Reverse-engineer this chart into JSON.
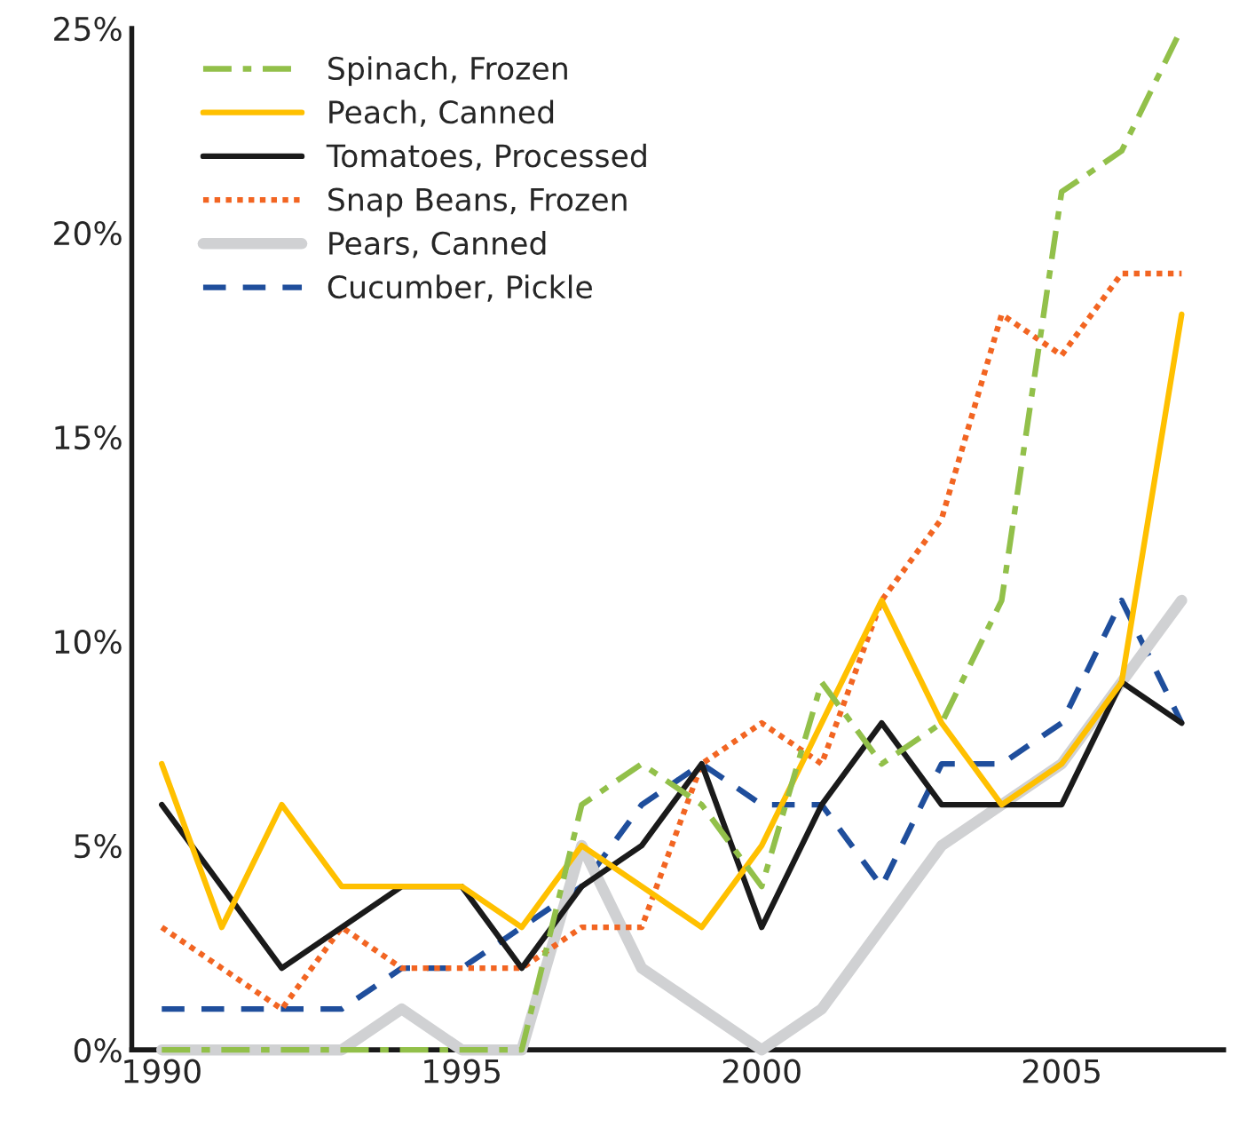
{
  "chart_data": {
    "type": "line",
    "categories": [
      "1990",
      null,
      null,
      null,
      null,
      "1995",
      null,
      null,
      null,
      null,
      "2000",
      null,
      null,
      null,
      null,
      "2005",
      null,
      null
    ],
    "series": [
      {
        "name": "Spinach, Frozen",
        "color": "#92c04a",
        "line_style": "dashdot",
        "values": [
          0,
          0,
          0,
          0,
          0,
          0,
          0,
          6,
          7,
          6,
          4,
          9,
          7,
          8,
          11,
          21,
          22,
          25
        ]
      },
      {
        "name": "Peach, Canned",
        "color": "#ffc000",
        "line_style": "solid",
        "values": [
          7,
          3,
          6,
          4,
          4,
          4,
          3,
          5,
          4,
          3,
          5,
          8,
          11,
          8,
          6,
          7,
          9,
          18
        ]
      },
      {
        "name": "Tomatoes, Processed",
        "color": "#1a1a1a",
        "line_style": "solid",
        "values": [
          6,
          4,
          2,
          3,
          4,
          4,
          2,
          4,
          5,
          7,
          3,
          6,
          8,
          6,
          6,
          6,
          9,
          8
        ]
      },
      {
        "name": "Snap Beans, Frozen",
        "color": "#f26522",
        "line_style": "dotted",
        "values": [
          3,
          2,
          1,
          3,
          2,
          2,
          2,
          3,
          3,
          7,
          8,
          7,
          11,
          13,
          18,
          17,
          19,
          19
        ]
      },
      {
        "name": "Pears, Canned",
        "color": "#d0d1d3",
        "line_style": "solid",
        "values": [
          0,
          0,
          0,
          0,
          1,
          0,
          0,
          5,
          2,
          1,
          0,
          1,
          3,
          5,
          6,
          7,
          9,
          11
        ]
      },
      {
        "name": "Cucumber, Pickle",
        "color": "#1f4e9c",
        "line_style": "dashed",
        "values": [
          1,
          1,
          1,
          1,
          2,
          2,
          3,
          4,
          6,
          7,
          6,
          6,
          4,
          7,
          7,
          8,
          11,
          8
        ]
      }
    ],
    "ylim": [
      0,
      25
    ],
    "yticks": [
      {
        "value": 0,
        "label": "0%"
      },
      {
        "value": 5,
        "label": "5%"
      },
      {
        "value": 10,
        "label": "10%"
      },
      {
        "value": 15,
        "label": "15%"
      },
      {
        "value": 20,
        "label": "20%"
      },
      {
        "value": 25,
        "label": "25%"
      }
    ],
    "grid": false,
    "legend": "top left"
  }
}
